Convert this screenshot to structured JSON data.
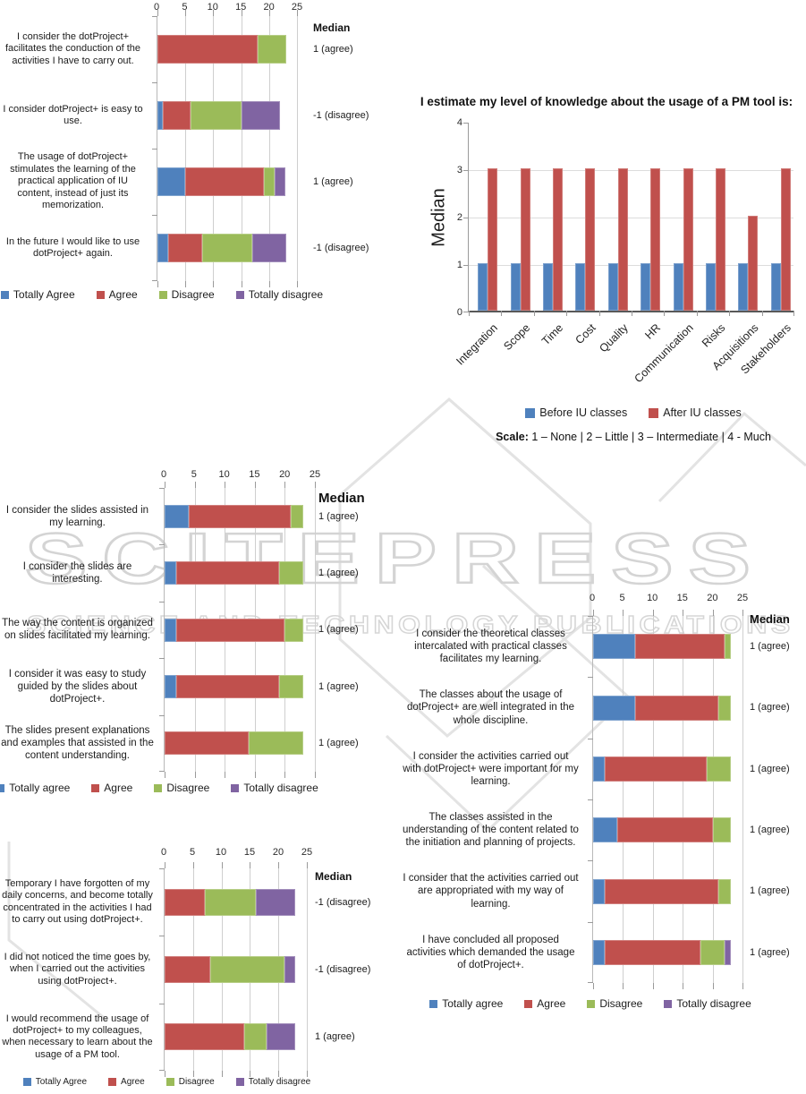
{
  "watermark": {
    "title": "SCITEPRESS",
    "subtitle": "SCIENCE AND TECHNOLOGY PUBLICATIONS"
  },
  "colors": {
    "totally_agree_blue": "#4F81BD",
    "agree_red": "#C0504D",
    "disagree_green": "#9BBB59",
    "totally_disagree_purple": "#8064A2",
    "watermark_gray": "#D4D4D4",
    "gridline_gray": "#CFCFCF"
  },
  "chart_data": [
    {
      "id": "dotproject-usage-survey",
      "type": "bar",
      "subtype": "stacked-bar-horizontal",
      "x_ticks": [
        0,
        5,
        10,
        15,
        20,
        25
      ],
      "x_max": 25,
      "median_header": "Median",
      "series_names": [
        "Totally Agree",
        "Agree",
        "Disagree",
        "Totally disagree"
      ],
      "series_colors": [
        "#4F81BD",
        "#C0504D",
        "#9BBB59",
        "#8064A2"
      ],
      "legend": [
        "Totally Agree",
        "Agree",
        "Disagree",
        "Totally disagree"
      ],
      "rows": [
        {
          "label": "I consider the dotProject+ facilitates the conduction of the activities I have to carry out.",
          "values": [
            0,
            18,
            5,
            0
          ],
          "median": "1 (agree)"
        },
        {
          "label": "I consider dotProject+ is easy to use.",
          "values": [
            1,
            5,
            9,
            7
          ],
          "median": "-1 (disagree)"
        },
        {
          "label": "The usage of dotProject+ stimulates the learning of the practical application of IU content, instead of just its memorization.",
          "values": [
            5,
            14,
            2,
            2
          ],
          "median": "1 (agree)"
        },
        {
          "label": "In the future I would like to use dotProject+ again.",
          "values": [
            2,
            6,
            9,
            6
          ],
          "median": "-1 (disagree)"
        }
      ]
    },
    {
      "id": "pm-tool-knowledge",
      "type": "bar",
      "subtype": "grouped-column",
      "title": "I estimate my level of knowledge about the usage of a PM tool is:",
      "ylabel": "Median",
      "y_ticks": [
        0,
        1,
        2,
        3,
        4
      ],
      "y_max": 4,
      "categories": [
        "Integration",
        "Scope",
        "Time",
        "Cost",
        "Quality",
        "HR",
        "Communication",
        "Risks",
        "Acquisitions",
        "Stakeholders"
      ],
      "series": [
        {
          "name": "Before IU classes",
          "color": "#4F81BD",
          "values": [
            1,
            1,
            1,
            1,
            1,
            1,
            1,
            1,
            1,
            1
          ]
        },
        {
          "name": "After IU classes",
          "color": "#C0504D",
          "values": [
            3,
            3,
            3,
            3,
            3,
            3,
            3,
            3,
            2,
            3
          ]
        }
      ],
      "scale_label": "Scale:",
      "scale_text": " 1 – None | 2 – Little | 3 – Intermediate | 4 - Much"
    },
    {
      "id": "slides-survey",
      "type": "bar",
      "subtype": "stacked-bar-horizontal",
      "x_ticks": [
        0,
        5,
        10,
        15,
        20,
        25
      ],
      "x_max": 25,
      "median_header": "Median",
      "series_names": [
        "Totally agree",
        "Agree",
        "Disagree",
        "Totally disagree"
      ],
      "series_colors": [
        "#4F81BD",
        "#C0504D",
        "#9BBB59",
        "#8064A2"
      ],
      "legend": [
        "Totally agree",
        "Agree",
        "Disagree",
        "Totally disagree"
      ],
      "rows": [
        {
          "label": "I consider the slides assisted in my learning.",
          "values": [
            4,
            17,
            2,
            0
          ],
          "median": "1 (agree)"
        },
        {
          "label": "I consider the slides are interesting.",
          "values": [
            2,
            17,
            4,
            0
          ],
          "median": "1 (agree)"
        },
        {
          "label": "The way the content is organized on slides facilitated my learning.",
          "values": [
            2,
            18,
            3,
            0
          ],
          "median": "1 (agree)"
        },
        {
          "label": "I consider it was easy to study guided by the slides about dotProject+.",
          "values": [
            2,
            17,
            4,
            0
          ],
          "median": "1 (agree)"
        },
        {
          "label": "The slides present explanations and examples that assisted in the content understanding.",
          "values": [
            0,
            14,
            9,
            0
          ],
          "median": "1 (agree)"
        }
      ]
    },
    {
      "id": "classes-survey",
      "type": "bar",
      "subtype": "stacked-bar-horizontal",
      "x_ticks": [
        0,
        5,
        10,
        15,
        20,
        25
      ],
      "x_max": 25,
      "median_header": "Median",
      "series_names": [
        "Totally agree",
        "Agree",
        "Disagree",
        "Totally disagree"
      ],
      "series_colors": [
        "#4F81BD",
        "#C0504D",
        "#9BBB59",
        "#8064A2"
      ],
      "legend": [
        "Totally agree",
        "Agree",
        "Disagree",
        "Totally disagree"
      ],
      "rows": [
        {
          "label": "I consider the theoretical classes intercalated with practical classes facilitates my learning.",
          "values": [
            7,
            15,
            1,
            0
          ],
          "median": "1 (agree)"
        },
        {
          "label": "The classes about the usage of dotProject+ are well integrated in the whole discipline.",
          "values": [
            7,
            14,
            2,
            0
          ],
          "median": "1 (agree)"
        },
        {
          "label": "I consider the activities carried out with dotProject+ were important for my learning.",
          "values": [
            2,
            17,
            4,
            0
          ],
          "median": "1 (agree)"
        },
        {
          "label": "The classes assisted in the understanding of the content related to the initiation and planning of projects.",
          "values": [
            4,
            16,
            3,
            0
          ],
          "median": "1 (agree)"
        },
        {
          "label": "I consider that the activities carried out are appropriated with my way of learning.",
          "values": [
            2,
            19,
            2,
            0
          ],
          "median": "1 (agree)"
        },
        {
          "label": "I have concluded all proposed activities which demanded the usage of dotProject+.",
          "values": [
            2,
            16,
            4,
            1
          ],
          "median": "1 (agree)"
        }
      ]
    },
    {
      "id": "engagement-survey",
      "type": "bar",
      "subtype": "stacked-bar-horizontal",
      "x_ticks": [
        0,
        5,
        10,
        15,
        20,
        25
      ],
      "x_max": 25,
      "median_header": "Median",
      "series_names": [
        "Totally Agree",
        "Agree",
        "Disagree",
        "Totally disagree"
      ],
      "series_colors": [
        "#4F81BD",
        "#C0504D",
        "#9BBB59",
        "#8064A2"
      ],
      "legend": [
        "Totally Agree",
        "Agree",
        "Disagree",
        "Totally disagree"
      ],
      "rows": [
        {
          "label": "Temporary I have forgotten of my daily concerns, and become totally concentrated in the activities I had to carry out using dotProject+.",
          "values": [
            0,
            7,
            9,
            7
          ],
          "median": "-1 (disagree)"
        },
        {
          "label": "I did not noticed the time goes by, when I carried out the activities using dotProject+.",
          "values": [
            0,
            8,
            13,
            2
          ],
          "median": "-1 (disagree)"
        },
        {
          "label": "I would recommend the usage of dotProject+ to my colleagues, when necessary to learn about the usage of a PM tool.",
          "values": [
            0,
            14,
            4,
            5
          ],
          "median": "1 (agree)"
        }
      ]
    }
  ]
}
